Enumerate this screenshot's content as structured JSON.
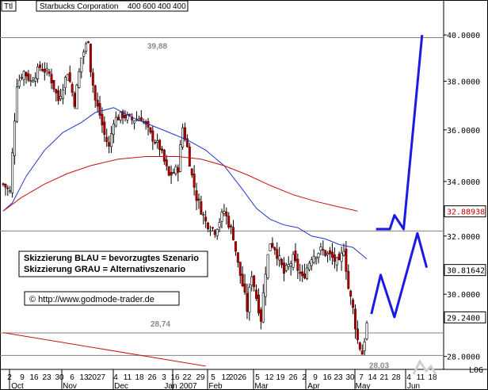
{
  "header": {
    "symbol": "Ttl",
    "title": "Starbucks Corporation",
    "periods": [
      "400",
      "600",
      "400",
      "400"
    ]
  },
  "legend": {
    "line1": "Skizzierung BLAU = bevorzugtes Szenario",
    "line2": "Skizzierung GRAU = Alternativszenario"
  },
  "watermark": "© http://www.godmode-trader.de",
  "footer": {
    "log_label": "LOG"
  },
  "chart_data": {
    "type": "candlestick",
    "y_scale": "log",
    "ylim": [
      27.6,
      41.0
    ],
    "y_ticks": [
      28.0,
      30.0,
      32.0,
      34.0,
      36.0,
      38.0,
      40.0
    ],
    "y_tick_labels": [
      "28.0000",
      "30.0000",
      "32.0000",
      "34.0000",
      "36.0000",
      "38.0000",
      "40.0000"
    ],
    "x_day_labels": [
      "2",
      "9",
      "16",
      "23",
      "30",
      "6",
      "13",
      "2027",
      "4",
      "11",
      "18",
      "26",
      "3",
      "16",
      "22",
      "29",
      "5",
      "12",
      "2026",
      "5",
      "12",
      "19",
      "26",
      "2",
      "9",
      "16",
      "23",
      "30",
      "7",
      "14",
      "21",
      "28",
      "4",
      "11",
      "18"
    ],
    "x_month_labels": [
      "Oct",
      "Nov",
      "Dec",
      "Jan 2007",
      "Feb",
      "Mar",
      "Apr",
      "May",
      "Jun"
    ],
    "horizontal_levels": [
      {
        "value": 39.88,
        "label": "39,88",
        "color": "#808080"
      },
      {
        "value": 32.18,
        "label": "",
        "color": "#808080"
      },
      {
        "value": 28.74,
        "label": "28,74",
        "color": "#808080"
      },
      {
        "value": 28.03,
        "label": "28,03",
        "color": "#808080"
      }
    ],
    "price_markers": [
      {
        "value": 32.88938,
        "label": "32.88938",
        "bg": "#ffffff",
        "fg": "#cc0000"
      },
      {
        "value": 30.81642,
        "label": "30.81642",
        "bg": "#ffffff",
        "fg": "#000000"
      },
      {
        "value": 29.24,
        "label": "29.2400",
        "bg": "#ffffff",
        "fg": "#000000"
      }
    ],
    "series": [
      {
        "name": "",
        "kind": "sma_short",
        "color": "#2233cc",
        "values": [
          [
            0,
            32.9
          ],
          [
            4,
            33.2
          ],
          [
            10,
            34.2
          ],
          [
            18,
            35.2
          ],
          [
            26,
            35.9
          ],
          [
            34,
            36.3
          ],
          [
            40,
            36.7
          ],
          [
            48,
            36.9
          ],
          [
            56,
            36.5
          ],
          [
            64,
            36.2
          ],
          [
            72,
            35.9
          ],
          [
            80,
            35.6
          ],
          [
            88,
            35.2
          ],
          [
            96,
            34.6
          ],
          [
            104,
            33.7
          ],
          [
            110,
            33.0
          ],
          [
            116,
            32.6
          ],
          [
            122,
            32.4
          ],
          [
            128,
            32.3
          ],
          [
            134,
            32.0
          ],
          [
            140,
            31.9
          ],
          [
            146,
            31.7
          ],
          [
            152,
            31.6
          ],
          [
            158,
            31.2
          ]
        ]
      },
      {
        "name": "",
        "kind": "sma_long",
        "color": "#cc1111",
        "values": [
          [
            0,
            32.9
          ],
          [
            8,
            33.4
          ],
          [
            18,
            33.9
          ],
          [
            28,
            34.3
          ],
          [
            38,
            34.6
          ],
          [
            50,
            34.85
          ],
          [
            62,
            34.95
          ],
          [
            76,
            34.95
          ],
          [
            86,
            34.85
          ],
          [
            96,
            34.6
          ],
          [
            106,
            34.25
          ],
          [
            116,
            33.85
          ],
          [
            126,
            33.5
          ],
          [
            136,
            33.25
          ],
          [
            146,
            33.05
          ],
          [
            154,
            32.9
          ]
        ]
      }
    ],
    "scenario_blue": [
      [
        162,
        32.25
      ],
      [
        168,
        32.25
      ],
      [
        170,
        32.75
      ],
      [
        174,
        32.25
      ],
      [
        182,
        40.0
      ]
    ],
    "scenario_blue_2": [
      [
        160,
        29.35
      ],
      [
        164,
        30.65
      ],
      [
        170,
        29.25
      ],
      [
        180,
        32.1
      ],
      [
        184,
        30.9
      ]
    ],
    "trendline_red": [
      [
        0,
        28.75
      ],
      [
        88,
        27.7
      ]
    ],
    "ohlc_anchors": [
      [
        0,
        33.9
      ],
      [
        3,
        33.6
      ],
      [
        6,
        37.9
      ],
      [
        9,
        38.4
      ],
      [
        12,
        38.0
      ],
      [
        16,
        38.6
      ],
      [
        20,
        38.3
      ],
      [
        24,
        37.2
      ],
      [
        28,
        38.4
      ],
      [
        31,
        37.1
      ],
      [
        34,
        39.0
      ],
      [
        37,
        39.8
      ],
      [
        38,
        38.5
      ],
      [
        40,
        37.2
      ],
      [
        42,
        36.6
      ],
      [
        44,
        35.8
      ],
      [
        46,
        35.3
      ],
      [
        48,
        36.4
      ],
      [
        52,
        36.6
      ],
      [
        56,
        36.4
      ],
      [
        60,
        36.5
      ],
      [
        64,
        35.8
      ],
      [
        68,
        35.3
      ],
      [
        72,
        34.2
      ],
      [
        76,
        34.5
      ],
      [
        78,
        36.1
      ],
      [
        80,
        35.3
      ],
      [
        82,
        34.2
      ],
      [
        84,
        33.4
      ],
      [
        88,
        32.5
      ],
      [
        92,
        32.2
      ],
      [
        96,
        32.9
      ],
      [
        100,
        32.0
      ],
      [
        102,
        31.0
      ],
      [
        104,
        30.3
      ],
      [
        106,
        29.5
      ],
      [
        108,
        30.7
      ],
      [
        110,
        29.9
      ],
      [
        112,
        29.2
      ],
      [
        114,
        30.8
      ],
      [
        116,
        31.8
      ],
      [
        118,
        31.6
      ],
      [
        122,
        30.7
      ],
      [
        126,
        31.2
      ],
      [
        130,
        30.5
      ],
      [
        134,
        31.3
      ],
      [
        138,
        31.5
      ],
      [
        142,
        31.3
      ],
      [
        146,
        31.0
      ],
      [
        148,
        31.6
      ],
      [
        150,
        30.2
      ],
      [
        152,
        29.5
      ],
      [
        154,
        28.5
      ],
      [
        156,
        28.1
      ],
      [
        158,
        29.0
      ]
    ]
  }
}
